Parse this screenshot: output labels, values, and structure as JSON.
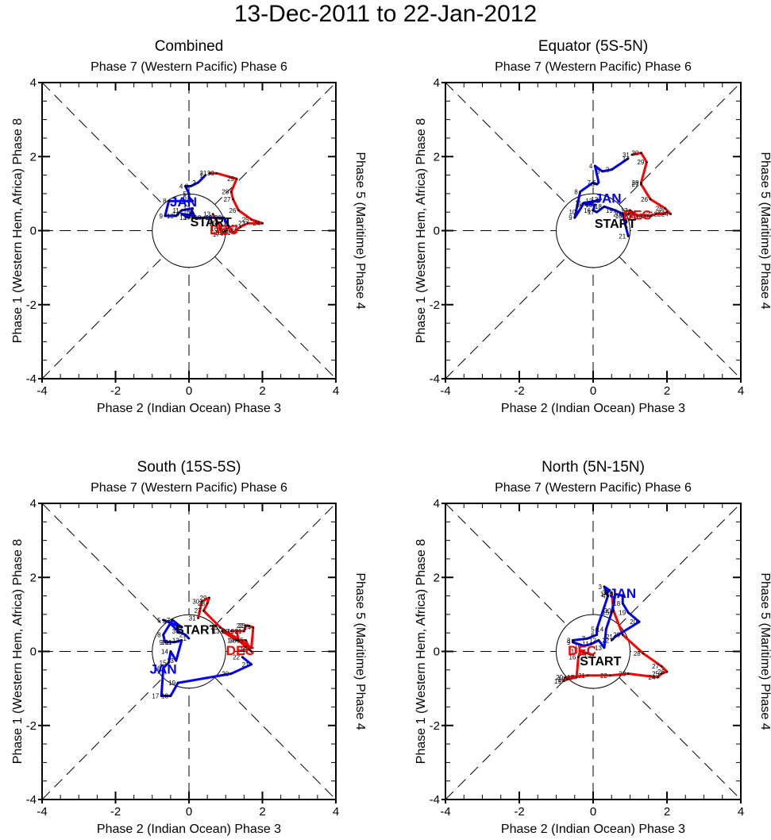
{
  "title": "13-Dec-2011 to 22-Jan-2012",
  "colors": {
    "dec": "#ff0000",
    "jan": "#0000ff",
    "axes": "#000000"
  },
  "chart_data": [
    {
      "type": "line",
      "title": "Combined",
      "top_label": "Phase 7 (Western Pacific) Phase 6",
      "bottom_label": "Phase 2 (Indian Ocean) Phase 3",
      "left_label": "Phase 1 (Western Hem, Africa) Phase 8",
      "right_label": "Phase 5 (Maritime) Phase 4",
      "xlim": [
        -4,
        4
      ],
      "ylim": [
        -4,
        4
      ],
      "xticks": [
        "-4",
        "-2",
        "0",
        "2",
        "4"
      ],
      "yticks": [
        "4",
        "2",
        "0",
        "-2",
        "-4"
      ],
      "start_label": "START",
      "start_pos": [
        0.6,
        0.25
      ],
      "month_labels": [
        {
          "text": "DEC",
          "color": "dec",
          "pos": [
            0.95,
            -0.1
          ]
        },
        {
          "text": "JAN",
          "color": "jan",
          "pos": [
            -0.15,
            0.65
          ]
        }
      ],
      "series": [
        {
          "name": "Dec",
          "color": "dec",
          "days": [
            13,
            14,
            15,
            16,
            17,
            18,
            19,
            20,
            21,
            22,
            23,
            24,
            25,
            26,
            27,
            28,
            29,
            30,
            31
          ],
          "x": [
            0.65,
            0.7,
            0.8,
            0.85,
            0.9,
            0.95,
            1.0,
            1.1,
            1.2,
            1.4,
            1.6,
            2.0,
            1.7,
            1.35,
            1.2,
            1.15,
            1.3,
            0.75,
            0.55
          ],
          "y": [
            0.45,
            0.35,
            0.2,
            0.05,
            -0.1,
            -0.05,
            0.0,
            0.1,
            -0.05,
            0.1,
            0.2,
            0.2,
            0.3,
            0.55,
            0.85,
            1.05,
            1.4,
            1.55,
            1.55
          ]
        },
        {
          "name": "Jan",
          "color": "jan",
          "days": [
            1,
            2,
            3,
            4,
            5,
            6,
            7,
            8,
            9,
            10,
            11,
            12,
            13,
            14,
            15,
            16,
            17,
            18,
            19,
            20,
            21
          ],
          "x": [
            0.45,
            0.25,
            0.05,
            -0.1,
            0.0,
            0.0,
            0.1,
            -0.55,
            -0.65,
            -0.35,
            -0.2,
            0.1,
            0.0,
            -0.2,
            0.15,
            0.1,
            0.1,
            0.4,
            0.7,
            0.95,
            1.15
          ],
          "y": [
            1.5,
            1.3,
            1.2,
            1.2,
            1.0,
            0.9,
            0.8,
            0.8,
            0.4,
            0.4,
            0.55,
            0.6,
            0.35,
            0.45,
            0.4,
            0.5,
            0.35,
            0.35,
            0.35,
            0.35,
            0.0
          ]
        }
      ]
    },
    {
      "type": "line",
      "title": "Equator (5S-5N)",
      "top_label": "Phase 7 (Western Pacific) Phase 6",
      "bottom_label": "Phase 2 (Indian Ocean) Phase 3",
      "left_label": "Phase 1 (Western Hem, Africa) Phase 8",
      "right_label": "Phase 5 (Maritime) Phase 4",
      "xlim": [
        -4,
        4
      ],
      "ylim": [
        -4,
        4
      ],
      "xticks": [
        "-4",
        "-2",
        "0",
        "2",
        "4"
      ],
      "yticks": [
        "4",
        "2",
        "0",
        "-2",
        "-4"
      ],
      "start_label": "START",
      "start_pos": [
        0.6,
        0.2
      ],
      "month_labels": [
        {
          "text": "DEC",
          "color": "dec",
          "pos": [
            1.2,
            0.3
          ]
        },
        {
          "text": "JAN",
          "color": "jan",
          "pos": [
            0.4,
            0.75
          ]
        }
      ],
      "series": [
        {
          "name": "Dec",
          "color": "dec",
          "days": [
            13,
            14,
            15,
            16,
            17,
            18,
            19,
            20,
            21,
            22,
            23,
            24,
            25,
            26,
            27,
            28,
            29,
            30,
            31
          ],
          "x": [
            0.85,
            0.95,
            1.05,
            1.1,
            1.0,
            1.2,
            1.4,
            1.55,
            1.7,
            1.9,
            2.0,
            2.1,
            1.95,
            1.55,
            1.3,
            1.3,
            1.45,
            1.3,
            1.05
          ],
          "y": [
            0.4,
            0.45,
            0.5,
            0.45,
            0.55,
            0.4,
            0.4,
            0.4,
            0.45,
            0.45,
            0.5,
            0.45,
            0.6,
            0.85,
            1.25,
            1.3,
            1.85,
            2.1,
            2.05
          ]
        },
        {
          "name": "Jan",
          "color": "jan",
          "days": [
            1,
            2,
            3,
            4,
            5,
            6,
            7,
            8,
            9,
            10,
            11,
            12,
            13,
            14,
            15,
            16,
            17,
            18,
            19,
            20,
            21
          ],
          "x": [
            0.95,
            0.5,
            0.25,
            0.05,
            0.15,
            0.1,
            0.0,
            -0.35,
            -0.5,
            -0.4,
            -0.25,
            0.05,
            0.2,
            -0.2,
            0.05,
            0.0,
            0.1,
            0.3,
            0.6,
            0.8,
            0.95
          ],
          "y": [
            1.95,
            1.65,
            1.6,
            1.75,
            1.3,
            1.25,
            1.3,
            1.05,
            0.35,
            0.5,
            0.75,
            0.8,
            0.85,
            0.7,
            0.7,
            0.55,
            0.5,
            0.65,
            0.55,
            0.45,
            -0.15
          ]
        }
      ]
    },
    {
      "type": "line",
      "title": "South (15S-5S)",
      "top_label": "Phase 7 (Western Pacific) Phase 6",
      "bottom_label": "Phase 2 (Indian Ocean) Phase 3",
      "left_label": "Phase 1 (Western Hem, Africa) Phase 8",
      "right_label": "Phase 5 (Maritime) Phase 4",
      "xlim": [
        -4,
        4
      ],
      "ylim": [
        -4,
        4
      ],
      "xticks": [
        "-4",
        "-2",
        "0",
        "2",
        "4"
      ],
      "yticks": [
        "4",
        "2",
        "0",
        "-2",
        "-4"
      ],
      "start_label": "START",
      "start_pos": [
        0.2,
        0.6
      ],
      "month_labels": [
        {
          "text": "DEC",
          "color": "dec",
          "pos": [
            1.4,
            -0.1
          ]
        },
        {
          "text": "JAN",
          "color": "jan",
          "pos": [
            -0.7,
            -0.6
          ]
        }
      ],
      "series": [
        {
          "name": "Dec",
          "color": "dec",
          "days": [
            13,
            14,
            15,
            16,
            17,
            18,
            19,
            20,
            21,
            22,
            23,
            24,
            25,
            26,
            27,
            28,
            29,
            30,
            31
          ],
          "x": [
            0.9,
            1.3,
            1.55,
            1.65,
            1.7,
            1.35,
            1.3,
            1.15,
            1.5,
            1.55,
            1.6,
            1.75,
            1.7,
            0.85,
            0.4,
            0.5,
            0.55,
            0.35,
            0.25
          ],
          "y": [
            0.55,
            0.3,
            0.3,
            0.05,
            0.0,
            0.3,
            0.55,
            0.55,
            0.55,
            0.7,
            0.7,
            0.65,
            0.1,
            0.65,
            1.1,
            1.3,
            1.45,
            1.35,
            0.9
          ]
        },
        {
          "name": "Jan",
          "color": "jan",
          "days": [
            1,
            2,
            3,
            4,
            5,
            6,
            7,
            8,
            9,
            10,
            11,
            12,
            13,
            14,
            15,
            16,
            17,
            18,
            19,
            20,
            21,
            22
          ],
          "x": [
            0.0,
            -0.1,
            -0.3,
            -0.55,
            -0.7,
            -0.2,
            -0.45,
            -0.7,
            -0.65,
            -0.5,
            -0.4,
            -0.2,
            -0.35,
            -0.5,
            -0.55,
            -0.7,
            -0.75,
            -0.5,
            -0.3,
            1.15,
            1.7,
            1.45
          ],
          "y": [
            0.35,
            0.45,
            0.55,
            0.8,
            0.85,
            0.65,
            0.85,
            0.45,
            0.25,
            0.25,
            0.25,
            0.3,
            -0.25,
            0.0,
            -0.3,
            -0.45,
            -1.2,
            -1.2,
            -0.85,
            -0.6,
            -0.35,
            -0.15
          ]
        }
      ]
    },
    {
      "type": "line",
      "title": "North (5N-15N)",
      "top_label": "Phase 7 (Western Pacific) Phase 6",
      "bottom_label": "Phase 2 (Indian Ocean) Phase 3",
      "left_label": "Phase 1 (Western Hem, Africa) Phase 8",
      "right_label": "Phase 5 (Maritime) Phase 4",
      "xlim": [
        -4,
        4
      ],
      "ylim": [
        -4,
        4
      ],
      "xticks": [
        "-4",
        "-2",
        "0",
        "2",
        "4"
      ],
      "yticks": [
        "4",
        "2",
        "0",
        "-2",
        "-4"
      ],
      "start_label": "START",
      "start_pos": [
        0.2,
        -0.25
      ],
      "month_labels": [
        {
          "text": "DEC",
          "color": "dec",
          "pos": [
            -0.3,
            -0.1
          ]
        },
        {
          "text": "JAN",
          "color": "jan",
          "pos": [
            0.8,
            1.45
          ]
        }
      ],
      "series": [
        {
          "name": "Dec",
          "color": "dec",
          "days": [
            13,
            14,
            15,
            16,
            17,
            18,
            19,
            20,
            21,
            22,
            23,
            24,
            25,
            26,
            27,
            28,
            29,
            30,
            31
          ],
          "x": [
            0.0,
            -0.15,
            -0.35,
            -0.4,
            -0.45,
            -0.7,
            -0.8,
            -0.75,
            -0.15,
            0.45,
            0.95,
            1.75,
            1.85,
            2.0,
            1.85,
            1.35,
            0.8,
            0.55,
            0.5
          ],
          "y": [
            -0.1,
            -0.05,
            0.0,
            -0.15,
            -0.7,
            -0.75,
            -0.8,
            -0.7,
            -0.65,
            -0.65,
            -0.6,
            -0.7,
            -0.6,
            -0.55,
            -0.4,
            -0.05,
            0.45,
            1.1,
            1.6
          ]
        },
        {
          "name": "Jan",
          "color": "jan",
          "days": [
            1,
            2,
            3,
            4,
            5,
            6,
            7,
            8,
            9,
            10,
            11,
            12,
            13,
            14,
            15,
            16,
            17,
            18,
            19,
            20,
            21,
            22
          ],
          "x": [
            0.35,
            0.45,
            0.3,
            0.4,
            0.1,
            0.1,
            -0.15,
            -0.55,
            -0.55,
            -0.25,
            -0.05,
            0.15,
            0.3,
            0.35,
            0.5,
            0.6,
            0.8,
            0.8,
            0.95,
            1.25,
            0.6,
            0.5
          ],
          "y": [
            1.55,
            1.65,
            1.75,
            1.5,
            0.6,
            0.45,
            0.35,
            0.3,
            0.25,
            0.15,
            0.2,
            0.3,
            0.1,
            0.6,
            1.05,
            1.55,
            1.5,
            1.3,
            1.05,
            0.8,
            0.4,
            0.3
          ]
        }
      ]
    }
  ]
}
